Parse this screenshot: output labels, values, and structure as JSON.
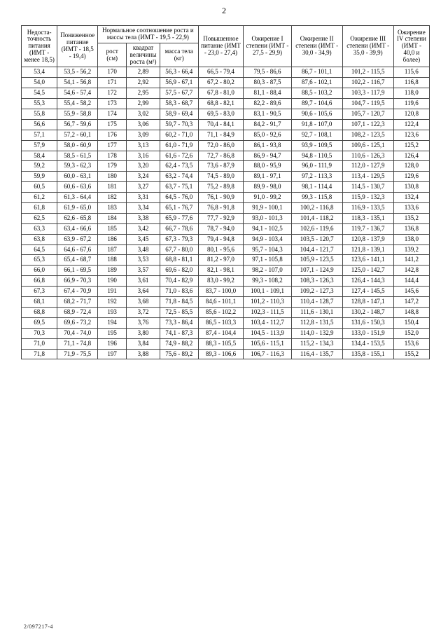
{
  "page": {
    "number": "2",
    "footer_code": "2/097217-4"
  },
  "table": {
    "type": "table",
    "background_color": "#ffffff",
    "border_color": "#444444",
    "text_color": "#000000",
    "font_family": "Times New Roman",
    "body_fontsize_pt": 7,
    "header_fontsize_pt": 7,
    "headers": {
      "h1": "Недоста-\nточность\nпитания\n(ИМТ -\nменее 18,5)",
      "h2": "Пониженное\nпитание\n(ИМТ -\n18,5 - 19,4)",
      "h3_group": "Нормальное соотношение роста и\nмассы тела\n(ИМТ - 19,5 - 22,9)",
      "h3a": "рост (см)",
      "h3b": "квадрат\nвеличины\nроста (м²)",
      "h3c": "масса\nтела (кг)",
      "h4": "Повышенное\nпитание\n(ИМТ -\n23,0 - 27,4)",
      "h5": "Ожирение\nI степени\n(ИМТ -\n27,5 - 29,9)",
      "h6": "Ожирение\nII степени\n(ИМТ -\n30,0 - 34,9)",
      "h7": "Ожирение\nIII степени\n(ИМТ -\n35,0 - 39,9)",
      "h8": "Ожирение\nIV степени\n(ИМТ - 40,0\nи более)"
    },
    "rows": [
      [
        "53,4",
        "53,5 - 56,2",
        "170",
        "2,89",
        "56,3 - 66,4",
        "66,5 - 79,4",
        "79,5 - 86,6",
        "86,7 - 101,1",
        "101,2 - 115,5",
        "115,6"
      ],
      [
        "54,0",
        "54,1 - 56,8",
        "171",
        "2,92",
        "56,9 - 67,1",
        "67,2 - 80,2",
        "80,3 - 87,5",
        "87,6 - 102,1",
        "102,2 - 116,7",
        "116,8"
      ],
      [
        "54,5",
        "54,6 - 57,4",
        "172",
        "2,95",
        "57,5 - 67,7",
        "67,8 - 81,0",
        "81,1 - 88,4",
        "88,5 - 103,2",
        "103,3 - 117,9",
        "118,0"
      ],
      [
        "55,3",
        "55,4 - 58,2",
        "173",
        "2,99",
        "58,3 - 68,7",
        "68,8 - 82,1",
        "82,2 - 89,6",
        "89,7 - 104,6",
        "104,7 - 119,5",
        "119,6"
      ],
      [
        "55,8",
        "55,9 - 58,8",
        "174",
        "3,02",
        "58,9 - 69,4",
        "69,5 - 83,0",
        "83,1 - 90,5",
        "90,6 - 105,6",
        "105,7 - 120,7",
        "120,8"
      ],
      [
        "56,6",
        "56,7 - 59,6",
        "175",
        "3,06",
        "59,7 - 70,3",
        "70,4 - 84,1",
        "84,2 - 91,7",
        "91,8 - 107,0",
        "107,1 - 122,3",
        "122,4"
      ],
      [
        "57,1",
        "57,2 - 60,1",
        "176",
        "3,09",
        "60,2 - 71,0",
        "71,1 - 84,9",
        "85,0 - 92,6",
        "92,7 - 108,1",
        "108,2 - 123,5",
        "123,6"
      ],
      [
        "57,9",
        "58,0 - 60,9",
        "177",
        "3,13",
        "61,0 - 71,9",
        "72,0 - 86,0",
        "86,1 - 93,8",
        "93,9 - 109,5",
        "109,6 - 125,1",
        "125,2"
      ],
      [
        "58,4",
        "58,5 - 61,5",
        "178",
        "3,16",
        "61,6 - 72,6",
        "72,7 - 86,8",
        "86,9 - 94,7",
        "94,8 - 110,5",
        "110,6 - 126,3",
        "126,4"
      ],
      [
        "59,2",
        "59,3 - 62,3",
        "179",
        "3,20",
        "62,4 - 73,5",
        "73,6 - 87,9",
        "88,0 - 95,9",
        "96,0 - 111,9",
        "112,0 - 127,9",
        "128,0"
      ],
      [
        "59,9",
        "60,0 - 63,1",
        "180",
        "3,24",
        "63,2 - 74,4",
        "74,5 - 89,0",
        "89,1 - 97,1",
        "97,2 - 113,3",
        "113,4 - 129,5",
        "129,6"
      ],
      [
        "60,5",
        "60,6 - 63,6",
        "181",
        "3,27",
        "63,7 - 75,1",
        "75,2 - 89,8",
        "89,9 - 98,0",
        "98,1 - 114,4",
        "114,5 - 130,7",
        "130,8"
      ],
      [
        "61,2",
        "61,3 - 64,4",
        "182",
        "3,31",
        "64,5 - 76,0",
        "76,1 - 90,9",
        "91,0 - 99,2",
        "99,3 - 115,8",
        "115,9 - 132,3",
        "132,4"
      ],
      [
        "61,8",
        "61,9 - 65,0",
        "183",
        "3,34",
        "65,1 - 76,7",
        "76,8 - 91,8",
        "91,9 - 100,1",
        "100,2 - 116,8",
        "116,9 - 133,5",
        "133,6"
      ],
      [
        "62,5",
        "62,6 - 65,8",
        "184",
        "3,38",
        "65,9 - 77,6",
        "77,7 - 92,9",
        "93,0 - 101,3",
        "101,4 - 118,2",
        "118,3 - 135,1",
        "135,2"
      ],
      [
        "63,3",
        "63,4 - 66,6",
        "185",
        "3,42",
        "66,7 - 78,6",
        "78,7 - 94,0",
        "94,1 - 102,5",
        "102,6 - 119,6",
        "119,7 - 136,7",
        "136,8"
      ],
      [
        "63,8",
        "63,9 - 67,2",
        "186",
        "3,45",
        "67,3 - 79,3",
        "79,4 - 94,8",
        "94,9 - 103,4",
        "103,5 - 120,7",
        "120,8 - 137,9",
        "138,0"
      ],
      [
        "64,5",
        "64,6 - 67,6",
        "187",
        "3,48",
        "67,7 - 80,0",
        "80,1 - 95,6",
        "95,7 - 104,3",
        "104,4 - 121,7",
        "121,8 - 139,1",
        "139,2"
      ],
      [
        "65,3",
        "65,4 - 68,7",
        "188",
        "3,53",
        "68,8 - 81,1",
        "81,2 - 97,0",
        "97,1 - 105,8",
        "105,9 - 123,5",
        "123,6 - 141,1",
        "141,2"
      ],
      [
        "66,0",
        "66,1 - 69,5",
        "189",
        "3,57",
        "69,6 - 82,0",
        "82,1 - 98,1",
        "98,2 - 107,0",
        "107,1 - 124,9",
        "125,0 - 142,7",
        "142,8"
      ],
      [
        "66,8",
        "66,9 - 70,3",
        "190",
        "3,61",
        "70,4 - 82,9",
        "83,0 - 99,2",
        "99,3 - 108,2",
        "108,3 - 126,3",
        "126,4 - 144,3",
        "144,4"
      ],
      [
        "67,3",
        "67,4 - 70,9",
        "191",
        "3,64",
        "71,0 - 83,6",
        "83,7 - 100,0",
        "100,1 - 109,1",
        "109,2 - 127,3",
        "127,4 - 145,5",
        "145,6"
      ],
      [
        "68,1",
        "68,2 - 71,7",
        "192",
        "3,68",
        "71,8 - 84,5",
        "84,6 - 101,1",
        "101,2 - 110,3",
        "110,4 - 128,7",
        "128,8 - 147,1",
        "147,2"
      ],
      [
        "68,8",
        "68,9 - 72,4",
        "193",
        "3,72",
        "72,5 - 85,5",
        "85,6 - 102,2",
        "102,3 - 111,5",
        "111,6 - 130,1",
        "130,2 - 148,7",
        "148,8"
      ],
      [
        "69,5",
        "69,6 - 73,2",
        "194",
        "3,76",
        "73,3 - 86,4",
        "86,5 - 103,3",
        "103,4 - 112,7",
        "112,8 - 131,5",
        "131,6 - 150,3",
        "150,4"
      ],
      [
        "70,3",
        "70,4 - 74,0",
        "195",
        "3,80",
        "74,1 - 87,3",
        "87,4 - 104,4",
        "104,5 - 113,9",
        "114,0 - 132,9",
        "133,0 - 151,9",
        "152,0"
      ],
      [
        "71,0",
        "71,1 - 74,8",
        "196",
        "3,84",
        "74,9 - 88,2",
        "88,3 - 105,5",
        "105,6 - 115,1",
        "115,2 - 134,3",
        "134,4 - 153,5",
        "153,6"
      ],
      [
        "71,8",
        "71,9 - 75,5",
        "197",
        "3,88",
        "75,6 - 89,2",
        "89,3 - 106,6",
        "106,7 - 116,3",
        "116,4 - 135,7",
        "135,8 - 155,1",
        "155,2"
      ]
    ]
  }
}
